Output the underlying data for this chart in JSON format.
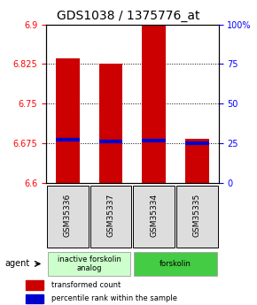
{
  "title": "GDS1038 / 1375776_at",
  "samples": [
    "GSM35336",
    "GSM35337",
    "GSM35334",
    "GSM35335"
  ],
  "bar_values": [
    6.835,
    6.825,
    6.9,
    6.683
  ],
  "percentile_values": [
    6.682,
    6.678,
    6.681,
    6.676
  ],
  "ylim": [
    6.6,
    6.9
  ],
  "yticks_left": [
    6.6,
    6.675,
    6.75,
    6.825,
    6.9
  ],
  "yticks_right": [
    0,
    25,
    50,
    75,
    100
  ],
  "bar_color": "#cc0000",
  "percentile_color": "#0000cc",
  "bar_bottom": 6.6,
  "grid_values": [
    6.675,
    6.75,
    6.825
  ],
  "groups": [
    {
      "label": "inactive forskolin\nanalog",
      "start": 0,
      "end": 2,
      "color": "#ccffcc"
    },
    {
      "label": "forskolin",
      "start": 2,
      "end": 4,
      "color": "#44cc44"
    }
  ],
  "agent_label": "agent",
  "legend_red": "transformed count",
  "legend_blue": "percentile rank within the sample",
  "title_fontsize": 10,
  "tick_fontsize": 7,
  "sample_fontsize": 6.5
}
